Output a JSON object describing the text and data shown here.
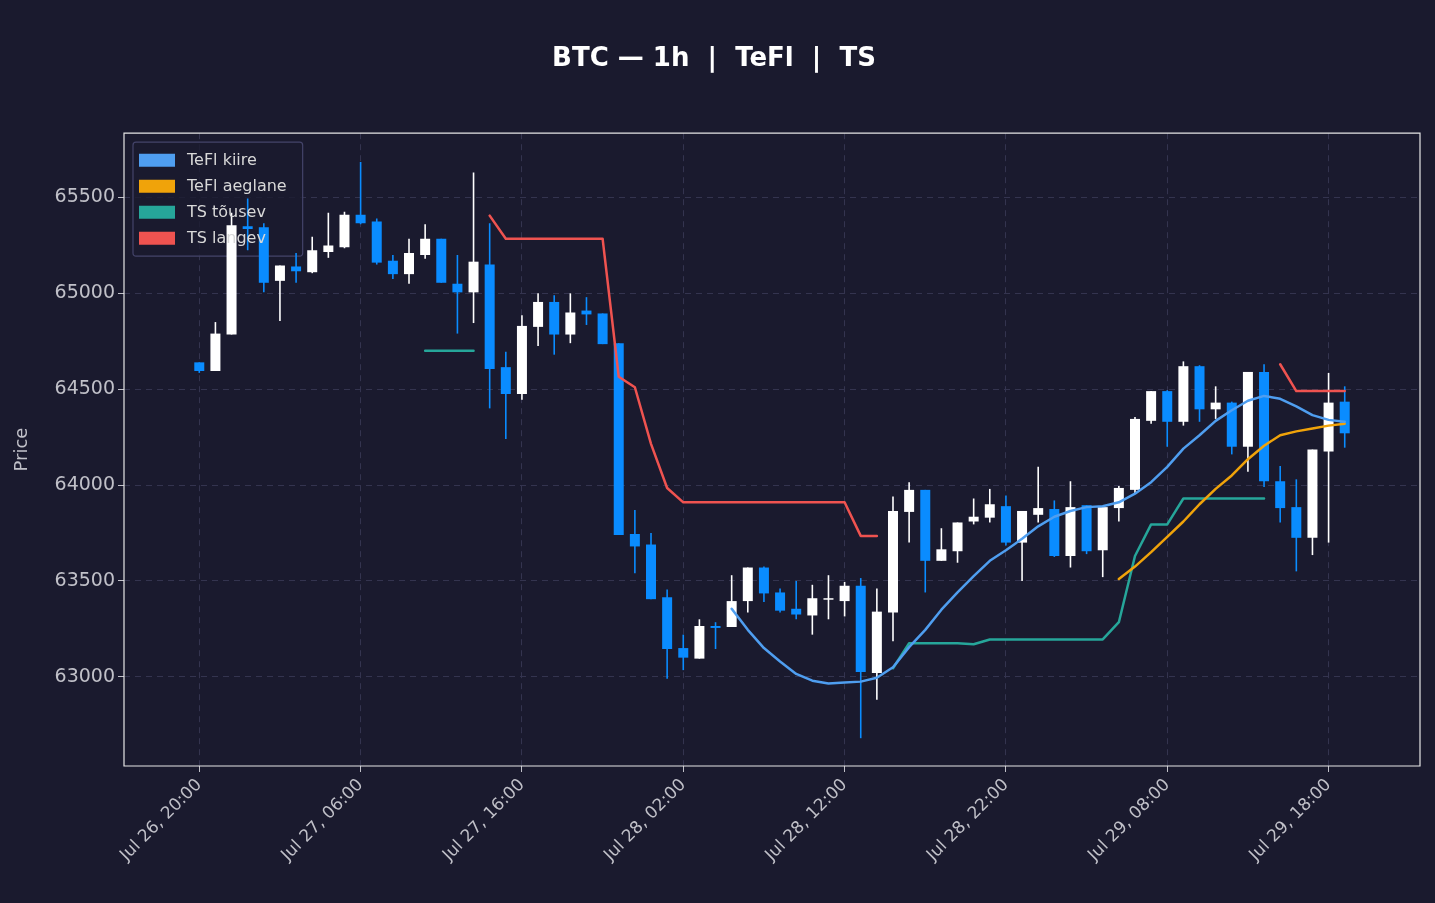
{
  "chart_data": {
    "type": "candlestick",
    "title": "BTC — 1h  |  TeFl  |  TS",
    "ylabel": "Price",
    "x": [
      "--07-26T20:00",
      "--07-26T21:00",
      "--07-26T22:00",
      "--07-26T23:00",
      "--07-27T00:00",
      "--07-27T01:00",
      "--07-27T02:00",
      "--07-27T03:00",
      "--07-27T04:00",
      "--07-27T05:00",
      "--07-27T06:00",
      "--07-27T07:00",
      "--07-27T08:00",
      "--07-27T09:00",
      "--07-27T10:00",
      "--07-27T11:00",
      "--07-27T12:00",
      "--07-27T13:00",
      "--07-27T14:00",
      "--07-27T15:00",
      "--07-27T16:00",
      "--07-27T17:00",
      "--07-27T18:00",
      "--07-27T19:00",
      "--07-27T20:00",
      "--07-27T21:00",
      "--07-27T22:00",
      "--07-27T23:00",
      "--07-28T00:00",
      "--07-28T01:00",
      "--07-28T02:00",
      "--07-28T03:00",
      "--07-28T04:00",
      "--07-28T05:00",
      "--07-28T06:00",
      "--07-28T07:00",
      "--07-28T08:00",
      "--07-28T09:00",
      "--07-28T10:00",
      "--07-28T11:00",
      "--07-28T12:00",
      "--07-28T13:00",
      "--07-28T14:00",
      "--07-28T15:00",
      "--07-28T16:00",
      "--07-28T17:00",
      "--07-28T18:00",
      "--07-28T19:00",
      "--07-28T20:00",
      "--07-28T21:00",
      "--07-28T22:00",
      "--07-28T23:00",
      "--07-29T00:00",
      "--07-29T01:00",
      "--07-29T02:00",
      "--07-29T03:00",
      "--07-29T04:00",
      "--07-29T05:00",
      "--07-29T06:00",
      "--07-29T07:00",
      "--07-29T08:00",
      "--07-29T09:00",
      "--07-29T10:00",
      "--07-29T11:00",
      "--07-29T12:00",
      "--07-29T13:00",
      "--07-29T14:00",
      "--07-29T15:00",
      "--07-29T16:00",
      "--07-29T17:00",
      "--07-29T18:00",
      "--07-29T19:00"
    ],
    "ohlc": [
      [
        64640,
        64640,
        64585,
        64595
      ],
      [
        64595,
        64850,
        64595,
        64790
      ],
      [
        64785,
        65420,
        64785,
        65355
      ],
      [
        65350,
        65495,
        65225,
        65335
      ],
      [
        65345,
        65365,
        65005,
        65055
      ],
      [
        65065,
        65145,
        64855,
        65145
      ],
      [
        65140,
        65210,
        65055,
        65115
      ],
      [
        65110,
        65295,
        65105,
        65225
      ],
      [
        65215,
        65420,
        65185,
        65250
      ],
      [
        65240,
        65425,
        65235,
        65410
      ],
      [
        65410,
        65685,
        65360,
        65365
      ],
      [
        65375,
        65390,
        65150,
        65160
      ],
      [
        65170,
        65200,
        65075,
        65100
      ],
      [
        65100,
        65285,
        65050,
        65210
      ],
      [
        65200,
        65360,
        65180,
        65285
      ],
      [
        65285,
        65285,
        65055,
        65055
      ],
      [
        65050,
        65200,
        64790,
        65005
      ],
      [
        65005,
        65630,
        64845,
        65165
      ],
      [
        65150,
        65365,
        64400,
        64605
      ],
      [
        64615,
        64695,
        64240,
        64475
      ],
      [
        64475,
        64885,
        64445,
        64830
      ],
      [
        64825,
        65000,
        64725,
        64955
      ],
      [
        64955,
        64990,
        64680,
        64785
      ],
      [
        64785,
        65000,
        64740,
        64900
      ],
      [
        64910,
        64980,
        64835,
        64890
      ],
      [
        64895,
        64895,
        64735,
        64735
      ],
      [
        64740,
        64740,
        63740,
        63740
      ],
      [
        63745,
        63870,
        63540,
        63680
      ],
      [
        63690,
        63750,
        63405,
        63405
      ],
      [
        63415,
        63455,
        62990,
        63145
      ],
      [
        63150,
        63220,
        63035,
        63100
      ],
      [
        63095,
        63300,
        63095,
        63265
      ],
      [
        63265,
        63285,
        63145,
        63255
      ],
      [
        63260,
        63530,
        63260,
        63395
      ],
      [
        63395,
        63570,
        63335,
        63570
      ],
      [
        63570,
        63575,
        63390,
        63435
      ],
      [
        63440,
        63460,
        63335,
        63345
      ],
      [
        63355,
        63500,
        63300,
        63325
      ],
      [
        63320,
        63480,
        63220,
        63410
      ],
      [
        63405,
        63530,
        63300,
        63410
      ],
      [
        63395,
        63495,
        63315,
        63475
      ],
      [
        63475,
        63515,
        62680,
        63025
      ],
      [
        63020,
        63460,
        62880,
        63340
      ],
      [
        63335,
        63940,
        63185,
        63865
      ],
      [
        63860,
        64015,
        63700,
        63975
      ],
      [
        63975,
        63975,
        63440,
        63605
      ],
      [
        63605,
        63775,
        63605,
        63665
      ],
      [
        63655,
        63805,
        63595,
        63805
      ],
      [
        63810,
        63930,
        63795,
        63835
      ],
      [
        63830,
        63980,
        63805,
        63900
      ],
      [
        63890,
        63945,
        63685,
        63700
      ],
      [
        63700,
        63865,
        63500,
        63865
      ],
      [
        63845,
        64095,
        63805,
        63880
      ],
      [
        63875,
        63920,
        63625,
        63630
      ],
      [
        63630,
        64020,
        63570,
        63885
      ],
      [
        63895,
        63895,
        63640,
        63655
      ],
      [
        63660,
        63885,
        63520,
        63885
      ],
      [
        63880,
        63995,
        63810,
        63985
      ],
      [
        63975,
        64355,
        63955,
        64345
      ],
      [
        64335,
        64490,
        64320,
        64490
      ],
      [
        64490,
        64495,
        64200,
        64330
      ],
      [
        64330,
        64645,
        64310,
        64620
      ],
      [
        64620,
        64625,
        64330,
        64395
      ],
      [
        64395,
        64515,
        64345,
        64430
      ],
      [
        64430,
        64435,
        64160,
        64200
      ],
      [
        64200,
        64590,
        64070,
        64590
      ],
      [
        64590,
        64630,
        63990,
        64020
      ],
      [
        64020,
        64100,
        63805,
        63880
      ],
      [
        63885,
        64030,
        63550,
        63725
      ],
      [
        63725,
        64185,
        63635,
        64185
      ],
      [
        64175,
        64585,
        63700,
        64430
      ],
      [
        64435,
        64515,
        64195,
        64270
      ]
    ],
    "colors": [
      "#0a8cff",
      "#ffffff",
      "#ffffff",
      "#0a8cff",
      "#0a8cff",
      "#ffffff",
      "#0a8cff",
      "#ffffff",
      "#ffffff",
      "#ffffff",
      "#0a8cff",
      "#0a8cff",
      "#0a8cff",
      "#ffffff",
      "#ffffff",
      "#0a8cff",
      "#0a8cff",
      "#ffffff",
      "#0a8cff",
      "#0a8cff",
      "#ffffff",
      "#ffffff",
      "#0a8cff",
      "#ffffff",
      "#0a8cff",
      "#0a8cff",
      "#0a8cff",
      "#0a8cff",
      "#0a8cff",
      "#0a8cff",
      "#0a8cff",
      "#ffffff",
      "#0a8cff",
      "#ffffff",
      "#ffffff",
      "#0a8cff",
      "#0a8cff",
      "#0a8cff",
      "#ffffff",
      "#ffffff",
      "#ffffff",
      "#0a8cff",
      "#ffffff",
      "#ffffff",
      "#ffffff",
      "#0a8cff",
      "#ffffff",
      "#ffffff",
      "#ffffff",
      "#ffffff",
      "#0a8cff",
      "#ffffff",
      "#ffffff",
      "#0a8cff",
      "#ffffff",
      "#0a8cff",
      "#ffffff",
      "#ffffff",
      "#ffffff",
      "#ffffff",
      "#0a8cff",
      "#ffffff",
      "#0a8cff",
      "#ffffff",
      "#0a8cff",
      "#ffffff",
      "#0a8cff",
      "#0a8cff",
      "#0a8cff",
      "#ffffff",
      "#ffffff",
      "#0a8cff"
    ],
    "series": [
      {
        "name": "TeFl kiire",
        "type": "line",
        "color": "#4f9ef0",
        "values": [
          null,
          null,
          null,
          null,
          null,
          null,
          null,
          null,
          null,
          null,
          null,
          null,
          null,
          null,
          null,
          null,
          null,
          null,
          null,
          null,
          null,
          null,
          null,
          null,
          null,
          null,
          null,
          null,
          null,
          null,
          null,
          null,
          null,
          63355,
          63245,
          63150,
          63080,
          63015,
          62980,
          62965,
          62970,
          62975,
          62995,
          63050,
          63155,
          63245,
          63350,
          63440,
          63525,
          63605,
          63660,
          63720,
          63785,
          63835,
          63865,
          63885,
          63890,
          63910,
          63955,
          64015,
          64095,
          64190,
          64260,
          64335,
          64390,
          64440,
          64465,
          64450,
          64410,
          64365,
          64340,
          64330
        ]
      },
      {
        "name": "TeFl aeglane",
        "type": "line",
        "color": "#f0a30a",
        "values": [
          null,
          null,
          null,
          null,
          null,
          null,
          null,
          null,
          null,
          null,
          null,
          null,
          null,
          null,
          null,
          null,
          null,
          null,
          null,
          null,
          null,
          null,
          null,
          null,
          null,
          null,
          null,
          null,
          null,
          null,
          null,
          null,
          null,
          null,
          null,
          null,
          null,
          null,
          null,
          null,
          null,
          null,
          null,
          null,
          null,
          null,
          null,
          null,
          null,
          null,
          null,
          null,
          null,
          null,
          null,
          null,
          null,
          63510,
          63575,
          63650,
          63730,
          63810,
          63900,
          63980,
          64050,
          64135,
          64205,
          64260,
          64280,
          64295,
          64310,
          64320
        ]
      },
      {
        "name": "TS tõusev",
        "type": "line",
        "color": "#26a69a",
        "values": [
          null,
          null,
          null,
          null,
          null,
          null,
          null,
          null,
          null,
          null,
          null,
          null,
          null,
          null,
          64700,
          64700,
          64700,
          64700,
          null,
          null,
          null,
          null,
          null,
          null,
          null,
          null,
          null,
          null,
          null,
          null,
          null,
          null,
          null,
          null,
          null,
          null,
          null,
          null,
          null,
          null,
          null,
          null,
          null,
          63045,
          63175,
          63175,
          63175,
          63175,
          63170,
          63195,
          63195,
          63195,
          63195,
          63195,
          63195,
          63195,
          63195,
          63285,
          63630,
          63795,
          63795,
          63930,
          63930,
          63930,
          63930,
          63930,
          63930,
          null,
          null,
          null,
          null,
          null
        ]
      },
      {
        "name": "TS langev",
        "type": "line",
        "color": "#ef5350",
        "values": [
          null,
          null,
          null,
          null,
          null,
          null,
          null,
          null,
          null,
          null,
          null,
          null,
          null,
          null,
          null,
          null,
          null,
          null,
          65405,
          65285,
          65285,
          65285,
          65285,
          65285,
          65285,
          65285,
          64565,
          64510,
          64215,
          63985,
          63910,
          63910,
          63910,
          63910,
          63910,
          63910,
          63910,
          63910,
          63910,
          63910,
          63910,
          63735,
          63735,
          null,
          null,
          null,
          null,
          null,
          null,
          null,
          null,
          null,
          null,
          null,
          null,
          null,
          null,
          null,
          null,
          null,
          null,
          null,
          null,
          null,
          null,
          null,
          null,
          64630,
          64490,
          64490,
          64490,
          64490
        ]
      }
    ],
    "xlim": [
      "--07-26T15:20",
      "--07-29T23:40"
    ],
    "xticks": [
      {
        "value": "--07-26T20:00",
        "label": "Jul 26, 20:00"
      },
      {
        "value": "--07-27T06:00",
        "label": "Jul 27, 06:00"
      },
      {
        "value": "--07-27T16:00",
        "label": "Jul 27, 16:00"
      },
      {
        "value": "--07-28T02:00",
        "label": "Jul 28, 02:00"
      },
      {
        "value": "--07-28T12:00",
        "label": "Jul 28, 12:00"
      },
      {
        "value": "--07-28T22:00",
        "label": "Jul 28, 22:00"
      },
      {
        "value": "--07-29T08:00",
        "label": "Jul 29, 08:00"
      },
      {
        "value": "--07-29T18:00",
        "label": "Jul 29, 18:00"
      }
    ],
    "ylim": [
      62535,
      65835
    ],
    "yticks": [
      63000,
      63500,
      64000,
      64500,
      65000,
      65500
    ],
    "grid": true,
    "legend": "top left",
    "line_style": "solid",
    "marker": "none"
  }
}
